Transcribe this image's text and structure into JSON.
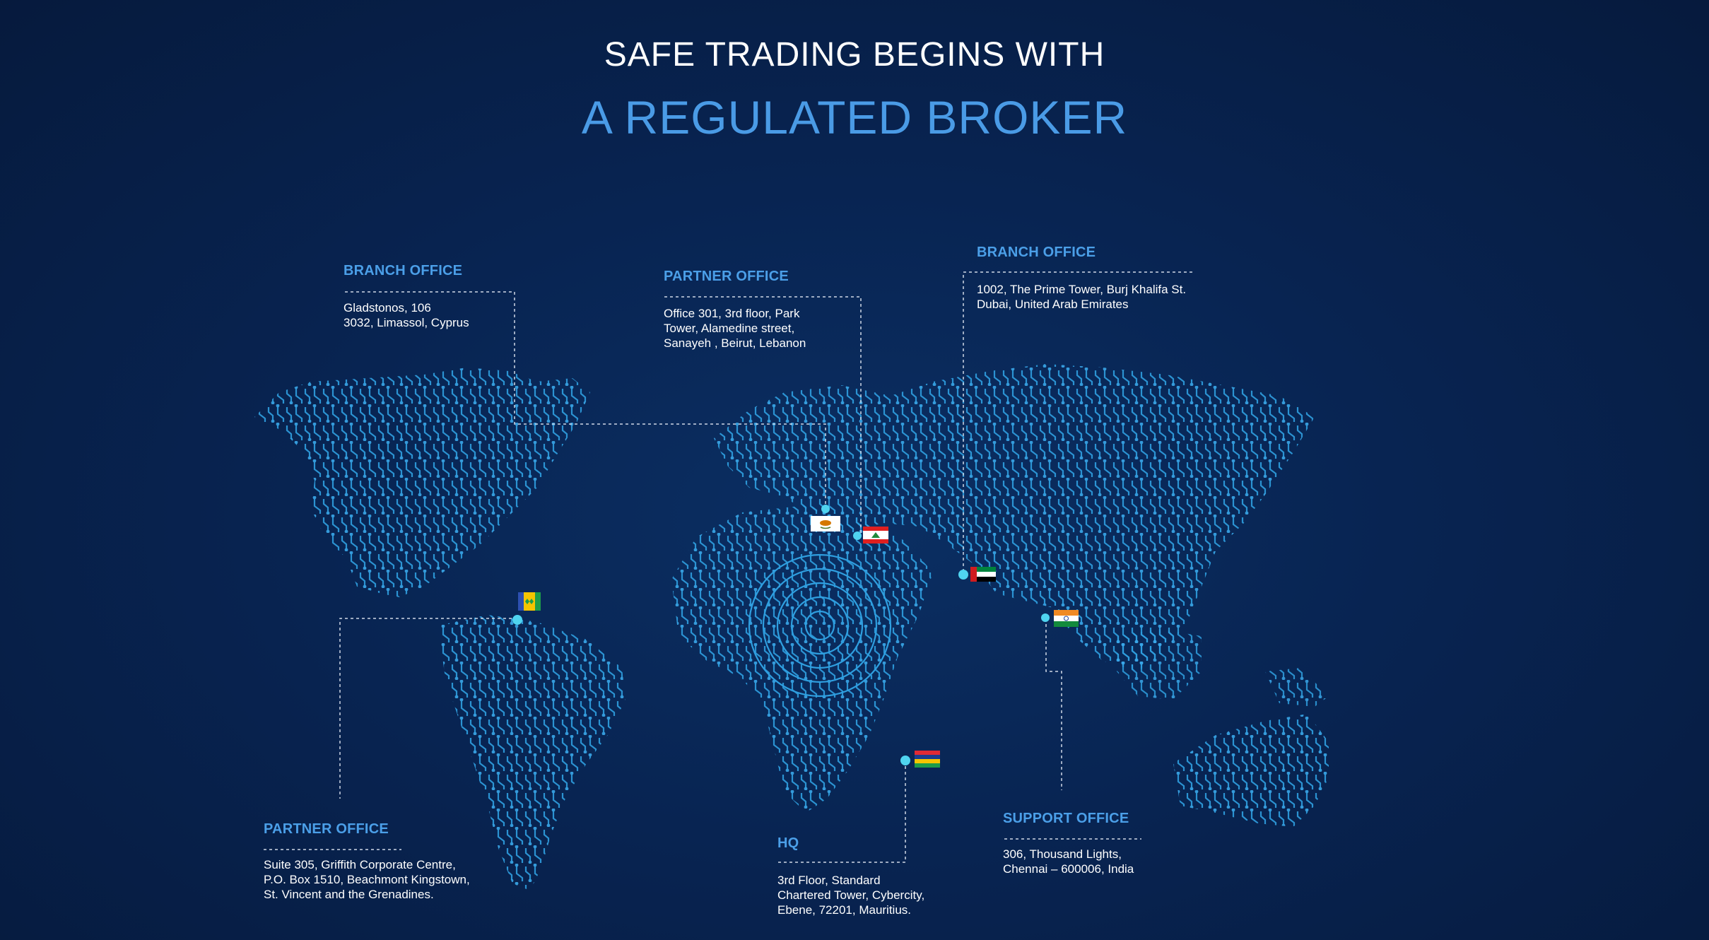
{
  "header": {
    "line1": "SAFE TRADING BEGINS WITH",
    "line2": "A REGULATED BROKER"
  },
  "colors": {
    "background": "#082452",
    "accent": "#4a9be6",
    "circuit": "#2f9fe0",
    "marker": "#4fd4f0",
    "text": "#ffffff"
  },
  "offices": {
    "cyprus": {
      "title": "BRANCH OFFICE",
      "address": [
        "Gladstonos, 106",
        "3032, Limassol, Cyprus"
      ],
      "flag_icon": "cyprus-flag-icon"
    },
    "lebanon": {
      "title": "PARTNER OFFICE",
      "address": [
        "Office 301, 3rd floor, Park",
        "Tower, Alamedine street,",
        "Sanayeh , Beirut, Lebanon"
      ],
      "flag_icon": "lebanon-flag-icon"
    },
    "dubai": {
      "title": "BRANCH OFFICE",
      "address": [
        "1002, The Prime Tower, Burj Khalifa St.",
        "Dubai, United Arab Emirates"
      ],
      "flag_icon": "uae-flag-icon"
    },
    "svg": {
      "title": "PARTNER OFFICE",
      "address": [
        "Suite 305, Griffith Corporate Centre,",
        "P.O. Box 1510, Beachmont Kingstown,",
        "St. Vincent and the Grenadines."
      ],
      "flag_icon": "saint-vincent-flag-icon"
    },
    "mauritius": {
      "title": "HQ",
      "address": [
        "3rd Floor, Standard",
        "Chartered Tower, Cybercity,",
        "Ebene, 72201, Mauritius."
      ],
      "flag_icon": "mauritius-flag-icon"
    },
    "india": {
      "title": "SUPPORT OFFICE",
      "address": [
        "306, Thousand Lights,",
        "Chennai – 600006, India"
      ],
      "flag_icon": "india-flag-icon"
    }
  }
}
